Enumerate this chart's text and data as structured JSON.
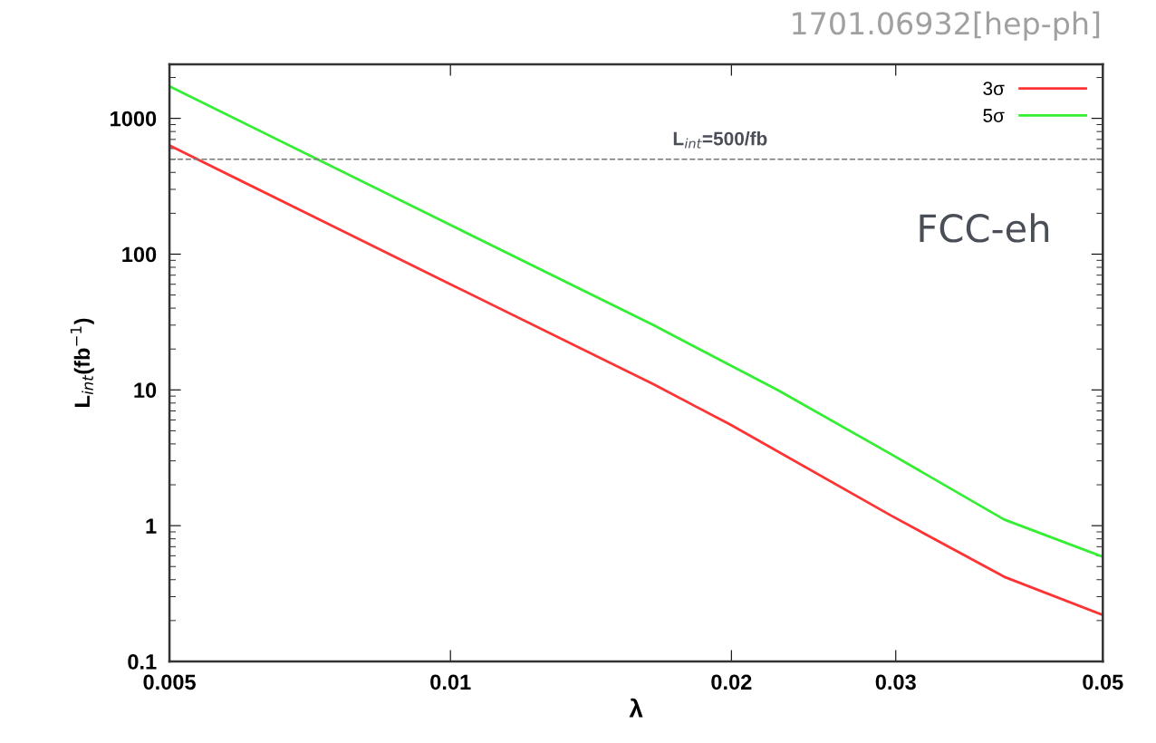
{
  "chart_data": {
    "type": "line",
    "xlabel": "λ",
    "ylabel": "L$_{int}$(fb$^{−1}$)",
    "log": "xy",
    "xlim": [
      0.005,
      0.05
    ],
    "xticks": [
      0.005,
      0.01,
      0.02,
      0.03,
      0.05
    ],
    "ylim": [
      0.1,
      2500
    ],
    "yticks": [
      0.1,
      1,
      10,
      100,
      1000
    ],
    "series": [
      {
        "name": "3σ",
        "color": "#ff3333",
        "x": [
          0.005,
          0.01,
          0.0165,
          0.0199,
          0.0297,
          0.0392,
          0.05
        ],
        "values": [
          631,
          60,
          11,
          5.6,
          1.18,
          0.42,
          0.22
        ]
      },
      {
        "name": "5σ",
        "color": "#33ee33",
        "x": [
          0.005,
          0.01,
          0.0165,
          0.0181,
          0.0224,
          0.0297,
          0.0392,
          0.05
        ],
        "values": [
          1725,
          164,
          30,
          21.5,
          10,
          3.34,
          1.11,
          0.59
        ]
      }
    ],
    "ref_lines": [
      {
        "axis": "y",
        "value": 500,
        "label": "L$_{int}$=500/fb",
        "color": "#777777",
        "line_style": "dashed"
      }
    ],
    "annotations": [
      "1701.06932[hep-ph]",
      "FCC-eh"
    ],
    "legend": "top right",
    "grid": false,
    "line_style": "solid",
    "marker": "none"
  }
}
